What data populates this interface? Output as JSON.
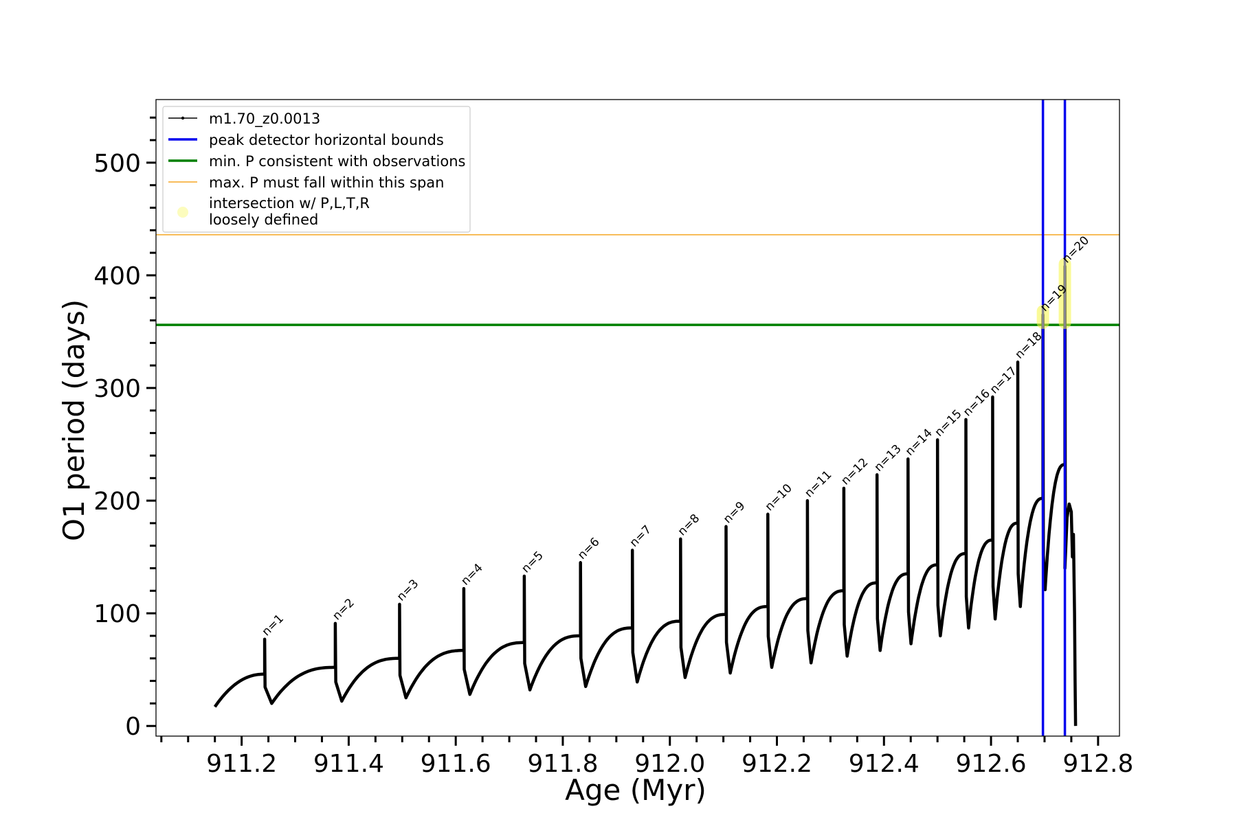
{
  "chart_data": {
    "type": "line",
    "title": "",
    "xlabel": "Age (Myr)",
    "ylabel": "O1 period (days)",
    "xlim": [
      911.04,
      912.84
    ],
    "ylim": [
      -9,
      556
    ],
    "xticks": [
      911.2,
      911.4,
      911.6,
      911.8,
      912.0,
      912.2,
      912.4,
      912.6,
      912.8
    ],
    "xtick_labels": [
      "911.2",
      "911.4",
      "911.6",
      "911.8",
      "912.0",
      "912.2",
      "912.4",
      "912.6",
      "912.8"
    ],
    "yticks": [
      0,
      100,
      200,
      300,
      400,
      500
    ],
    "ytick_labels": [
      "0",
      "100",
      "200",
      "300",
      "400",
      "500"
    ],
    "x_minor_step": 0.05,
    "y_minor_step": 20,
    "grid": false,
    "legend_position": "top-left",
    "series": [
      {
        "name": "m1.70_z0.0013",
        "color": "#000000",
        "marker": "dot",
        "start": {
          "x": 911.15,
          "y": 17
        },
        "pulses": [
          {
            "n": "n=1",
            "x": 911.243,
            "peak": 77,
            "pre": 46,
            "dip": 20,
            "end_x": 911.375
          },
          {
            "n": "n=2",
            "x": 911.375,
            "peak": 91,
            "pre": 52,
            "dip": 22,
            "end_x": 911.495
          },
          {
            "n": "n=3",
            "x": 911.495,
            "peak": 108,
            "pre": 60,
            "dip": 25,
            "end_x": 911.615
          },
          {
            "n": "n=4",
            "x": 911.615,
            "peak": 122,
            "pre": 67,
            "dip": 28,
            "end_x": 911.728
          },
          {
            "n": "n=5",
            "x": 911.728,
            "peak": 133,
            "pre": 74,
            "dip": 32,
            "end_x": 911.833
          },
          {
            "n": "n=6",
            "x": 911.833,
            "peak": 145,
            "pre": 80,
            "dip": 35,
            "end_x": 911.93
          },
          {
            "n": "n=7",
            "x": 911.93,
            "peak": 156,
            "pre": 87,
            "dip": 39,
            "end_x": 912.02
          },
          {
            "n": "n=8",
            "x": 912.02,
            "peak": 166,
            "pre": 93,
            "dip": 43,
            "end_x": 912.105
          },
          {
            "n": "n=9",
            "x": 912.105,
            "peak": 177,
            "pre": 99,
            "dip": 47,
            "end_x": 912.183
          },
          {
            "n": "n=10",
            "x": 912.183,
            "peak": 188,
            "pre": 106,
            "dip": 52,
            "end_x": 912.257
          },
          {
            "n": "n=11",
            "x": 912.257,
            "peak": 200,
            "pre": 113,
            "dip": 56,
            "end_x": 912.325
          },
          {
            "n": "n=12",
            "x": 912.325,
            "peak": 211,
            "pre": 120,
            "dip": 62,
            "end_x": 912.387
          },
          {
            "n": "n=13",
            "x": 912.387,
            "peak": 223,
            "pre": 127,
            "dip": 67,
            "end_x": 912.445
          },
          {
            "n": "n=14",
            "x": 912.445,
            "peak": 237,
            "pre": 135,
            "dip": 73,
            "end_x": 912.5
          },
          {
            "n": "n=15",
            "x": 912.5,
            "peak": 254,
            "pre": 143,
            "dip": 80,
            "end_x": 912.553
          },
          {
            "n": "n=16",
            "x": 912.553,
            "peak": 272,
            "pre": 153,
            "dip": 87,
            "end_x": 912.603
          },
          {
            "n": "n=17",
            "x": 912.603,
            "peak": 292,
            "pre": 165,
            "dip": 95,
            "end_x": 912.65
          },
          {
            "n": "n=18",
            "x": 912.65,
            "peak": 323,
            "pre": 180,
            "dip": 106,
            "end_x": 912.697
          },
          {
            "n": "n=19",
            "x": 912.697,
            "peak": 365,
            "pre": 202,
            "dip": 121,
            "end_x": 912.738
          },
          {
            "n": "n=20",
            "x": 912.738,
            "peak": 408,
            "pre": 232,
            "dip": 140,
            "end_x": 912.762
          }
        ],
        "tail": [
          {
            "x": 912.738,
            "y": 140
          },
          {
            "x": 912.742,
            "y": 185
          },
          {
            "x": 912.746,
            "y": 197
          },
          {
            "x": 912.75,
            "y": 190
          },
          {
            "x": 912.752,
            "y": 150
          },
          {
            "x": 912.754,
            "y": 170
          },
          {
            "x": 912.756,
            "y": 100
          },
          {
            "x": 912.757,
            "y": 40
          },
          {
            "x": 912.758,
            "y": 0
          }
        ]
      }
    ],
    "vertical_lines": {
      "name": "peak detector horizontal bounds",
      "color": "#0000ee",
      "x": [
        912.697,
        912.738
      ]
    },
    "horizontal_lines": [
      {
        "name": "min. P consistent with observations",
        "color": "#008000",
        "y": 356
      },
      {
        "name": "max. P must fall within this span",
        "color": "#f5a623",
        "y": 436
      }
    ],
    "highlights": {
      "name": [
        "intersection w/ P,L,T,R",
        "loosely defined"
      ],
      "color": "#f5f542",
      "regions": [
        {
          "x": 912.697,
          "y_from": 356,
          "y_to": 370
        },
        {
          "x": 912.738,
          "y_from": 356,
          "y_to": 412
        }
      ]
    },
    "colors": {
      "series": "#000000",
      "bounds": "#0000ee",
      "min_period": "#008000",
      "max_period": "#f5a623",
      "highlight": "#f5f542"
    }
  }
}
